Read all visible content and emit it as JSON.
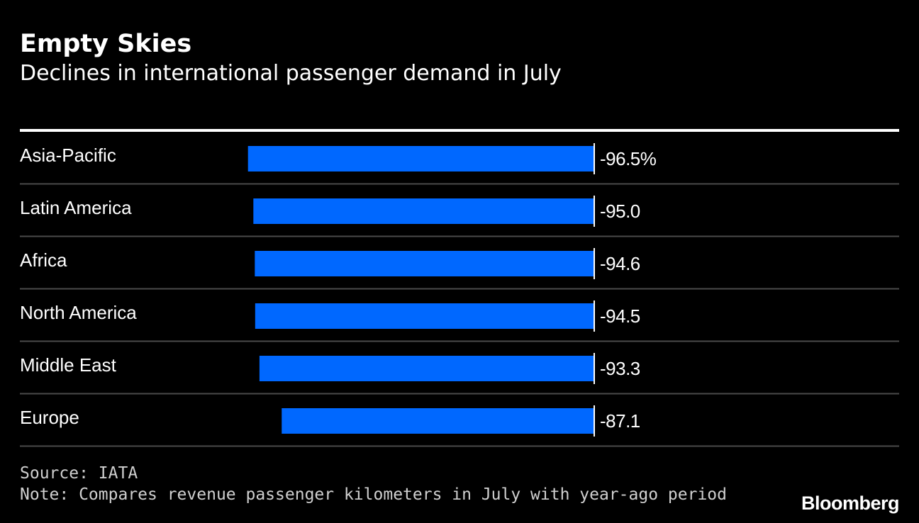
{
  "header": {
    "title": "Empty Skies",
    "subtitle": "Declines in international passenger demand in July"
  },
  "footer": {
    "source": "Source: IATA",
    "note": "Note: Compares revenue passenger kilometers in July with year-ago period",
    "brand": "Bloomberg"
  },
  "colors": {
    "bar": "#0068FF",
    "background": "#000000",
    "text": "#FFFFFF",
    "separator": "#4a4a4a"
  },
  "chart_data": {
    "type": "bar",
    "orientation": "horizontal",
    "title": "Empty Skies",
    "subtitle": "Declines in international passenger demand in July",
    "categories": [
      "Asia-Pacific",
      "Latin America",
      "Africa",
      "North America",
      "Middle East",
      "Europe"
    ],
    "values": [
      -96.5,
      -95.0,
      -94.6,
      -94.5,
      -93.3,
      -87.1
    ],
    "value_labels": [
      "-96.5%",
      "-95.0",
      "-94.6",
      "-94.5",
      "-93.3",
      "-87.1"
    ],
    "unit": "%",
    "xlim": [
      -100,
      0
    ],
    "grid": false
  }
}
